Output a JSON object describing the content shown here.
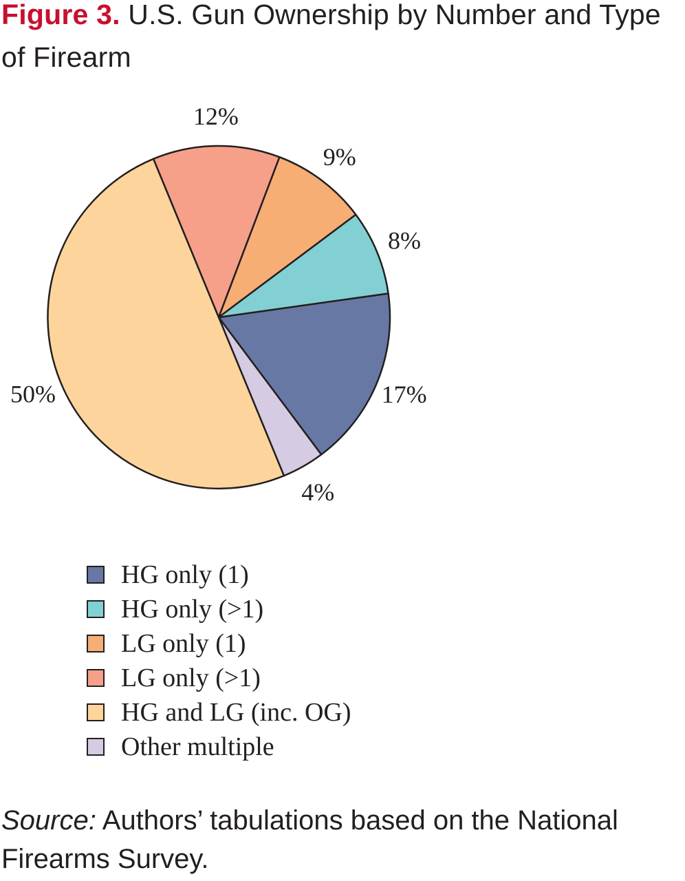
{
  "figure": {
    "label": "Figure 3.",
    "title": "U.S. Gun Ownership by Number and Type of Firearm"
  },
  "chart_data": {
    "type": "pie",
    "slices": [
      {
        "name": "HG only (1)",
        "value": 17,
        "label": "17%",
        "color": "#6878a4"
      },
      {
        "name": "Other multiple",
        "value": 4,
        "label": "4%",
        "color": "#d5cbe2"
      },
      {
        "name": "HG and LG (inc. OG)",
        "value": 50,
        "label": "50%",
        "color": "#fdd59c"
      },
      {
        "name": "LG only (>1)",
        "value": 12,
        "label": "12%",
        "color": "#f6a089"
      },
      {
        "name": "LG only (1)",
        "value": 9,
        "label": "9%",
        "color": "#f6ae75"
      },
      {
        "name": "HG only (>1)",
        "value": 8,
        "label": "8%",
        "color": "#82d0d4"
      }
    ],
    "start_angle_deg": 82,
    "direction": "clockwise-from-right",
    "legend": {
      "placement": "below",
      "items": [
        {
          "label": "HG only (1)",
          "color": "#6878a4"
        },
        {
          "label": "HG only (>1)",
          "color": "#82d0d4"
        },
        {
          "label": "LG only (1)",
          "color": "#f6ae75"
        },
        {
          "label": "LG only (>1)",
          "color": "#f6a089"
        },
        {
          "label": "HG and LG (inc. OG)",
          "color": "#fdd59c"
        },
        {
          "label": "Other multiple",
          "color": "#d5cbe2"
        }
      ]
    }
  },
  "source": {
    "label": "Source:",
    "text": " Authors’ tabulations based on the National Firearms Survey."
  }
}
